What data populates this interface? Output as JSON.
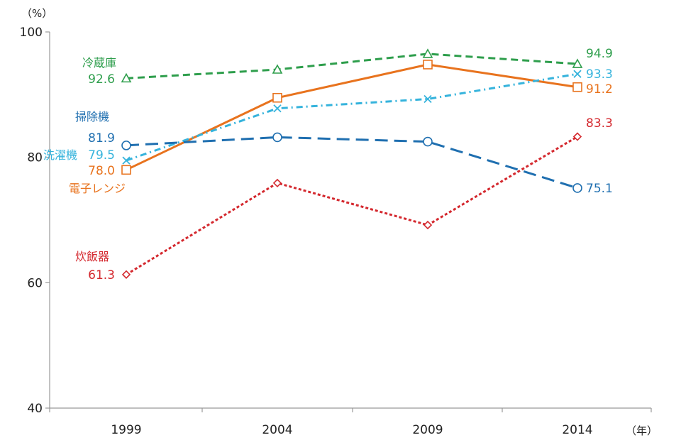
{
  "chart_data": {
    "type": "line",
    "title": "",
    "xlabel": "（年）",
    "ylabel": "（%）",
    "x": [
      "1999",
      "2004",
      "2009",
      "2014"
    ],
    "ylim": [
      40,
      100
    ],
    "yticks": [
      40,
      60,
      80,
      100
    ],
    "grid": false,
    "series": [
      {
        "name": "冷蔵庫",
        "values": [
          92.6,
          94.0,
          96.5,
          94.9
        ],
        "color": "#2e9e4c",
        "dash": "10,6",
        "marker": "triangle",
        "start_label": "92.6",
        "end_label": "94.9"
      },
      {
        "name": "電子レンジ",
        "values": [
          78.0,
          89.5,
          94.8,
          91.2
        ],
        "color": "#e8731e",
        "dash": "",
        "marker": "square",
        "start_label": "78.0",
        "end_label": "91.2"
      },
      {
        "name": "洗濯機",
        "values": [
          79.5,
          87.8,
          89.3,
          93.3
        ],
        "color": "#35b3dc",
        "dash": "9,5,2,5",
        "marker": "x",
        "start_label": "79.5",
        "end_label": "93.3"
      },
      {
        "name": "掃除機",
        "values": [
          81.9,
          83.2,
          82.5,
          75.1
        ],
        "color": "#1f6fb0",
        "dash": "18,9",
        "marker": "circle",
        "start_label": "81.9",
        "end_label": "75.1"
      },
      {
        "name": "炊飯器",
        "values": [
          61.3,
          75.9,
          69.2,
          83.3
        ],
        "color": "#d4282e",
        "dash": "4,3",
        "marker": "diamond",
        "start_label": "61.3",
        "end_label": "83.3"
      }
    ]
  }
}
